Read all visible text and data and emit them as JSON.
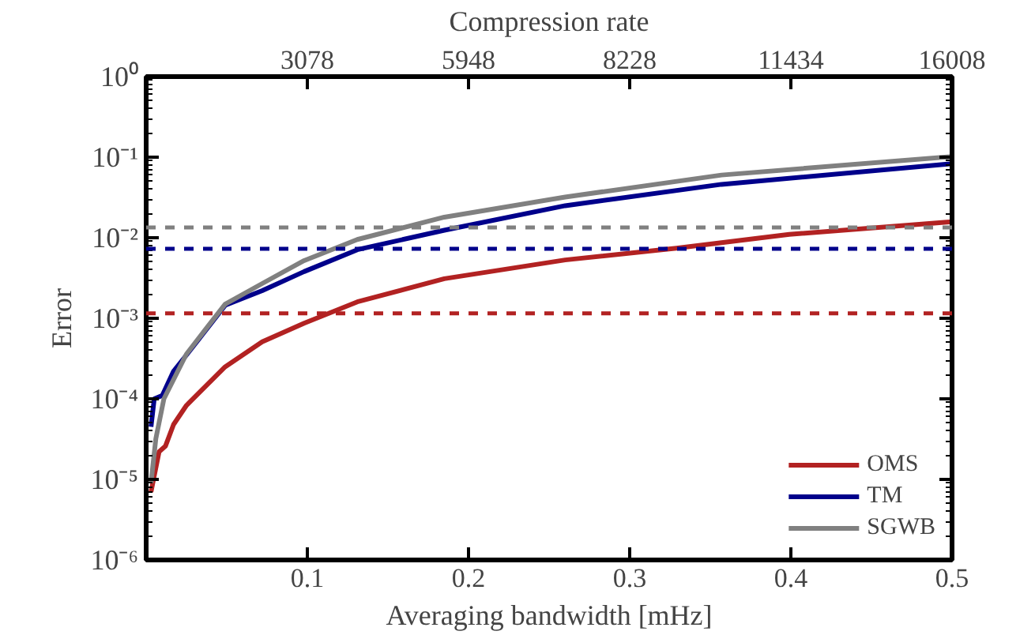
{
  "chart_data": {
    "type": "line",
    "xlabel": "Averaging bandwidth [mHz]",
    "ylabel": "Error",
    "x2label": "Compression rate",
    "xlim": [
      0,
      0.5
    ],
    "xticks": [
      0.1,
      0.2,
      0.3,
      0.4,
      0.5
    ],
    "annotations": [
      "3078",
      "5948",
      "8228",
      "11434",
      "16008"
    ],
    "ylim": [
      1e-06,
      1
    ],
    "yticks": [
      {
        "value": 1e-06,
        "label": "10⁻⁶"
      },
      {
        "value": 1e-05,
        "label": "10⁻⁵"
      },
      {
        "value": 0.0001,
        "label": "10⁻⁴"
      },
      {
        "value": 0.001,
        "label": "10⁻³"
      },
      {
        "value": 0.01,
        "label": "10⁻²"
      },
      {
        "value": 0.1,
        "label": "10⁻¹"
      },
      {
        "value": 1,
        "label": "10⁰"
      }
    ],
    "log": "y",
    "grid": false,
    "legend": "bottom right",
    "line_style": "solid",
    "marker": "none",
    "series": [
      {
        "name": "OMS",
        "color": "#b22222",
        "x": [
          0.003,
          0.008,
          0.012,
          0.017,
          0.025,
          0.049,
          0.072,
          0.098,
          0.131,
          0.185,
          0.26,
          0.329,
          0.399,
          0.5
        ],
        "values": [
          7e-06,
          2.2e-05,
          2.6e-05,
          4.8e-05,
          8.3e-05,
          0.00025,
          0.00051,
          0.00087,
          0.0016,
          0.0031,
          0.0053,
          0.0074,
          0.011,
          0.0158
        ]
      },
      {
        "name": "TM",
        "color": "#00008b",
        "x": [
          0.003,
          0.005,
          0.01,
          0.017,
          0.025,
          0.049,
          0.072,
          0.098,
          0.131,
          0.185,
          0.26,
          0.357,
          0.5
        ],
        "values": [
          4.5e-05,
          0.0001,
          0.00011,
          0.00022,
          0.00035,
          0.00145,
          0.0022,
          0.0038,
          0.0071,
          0.0124,
          0.025,
          0.046,
          0.083
        ]
      },
      {
        "name": "SGWB",
        "color": "#808080",
        "x": [
          0.003,
          0.006,
          0.011,
          0.025,
          0.049,
          0.072,
          0.098,
          0.131,
          0.185,
          0.26,
          0.357,
          0.5
        ],
        "values": [
          9e-06,
          3.2e-05,
          0.0001,
          0.00036,
          0.0015,
          0.0027,
          0.0052,
          0.0095,
          0.018,
          0.032,
          0.06,
          0.102
        ]
      }
    ],
    "ref_lines": [
      {
        "axis": "y",
        "value": 0.0134,
        "color": "#808080",
        "line_style": "dashed"
      },
      {
        "axis": "y",
        "value": 0.0073,
        "color": "#00008b",
        "line_style": "dashed"
      },
      {
        "axis": "y",
        "value": 0.00115,
        "color": "#b22222",
        "line_style": "dashed"
      }
    ]
  }
}
